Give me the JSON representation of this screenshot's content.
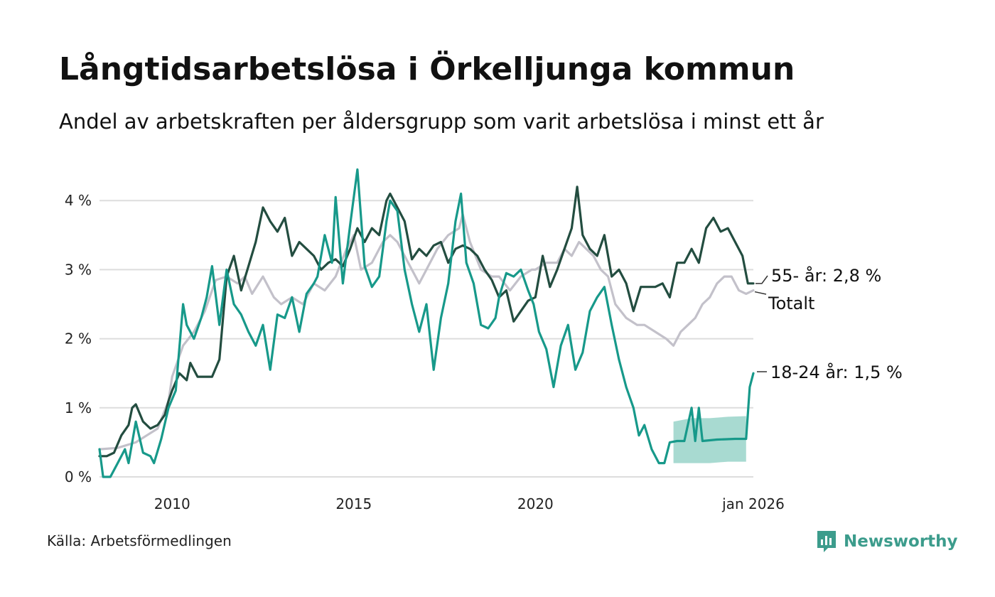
{
  "header": {
    "title": "Långtidsarbetslösa i Örkelljunga kommun",
    "subtitle": "Andel av arbetskraften per åldersgrupp som varit arbetslösa i minst ett år"
  },
  "footer": {
    "source": "Källa: Arbetsförmedlingen",
    "brand": "Newsworthy"
  },
  "colors": {
    "total": "#c3c1ca",
    "age55": "#234d40",
    "age18_24": "#17998a",
    "band": "#9fd6cc",
    "grid": "#dddddd"
  },
  "chart_data": {
    "type": "line",
    "title": "Långtidsarbetslösa i Örkelljunga kommun",
    "subtitle": "Andel av arbetskraften per åldersgrupp som varit arbetslösa i minst ett år",
    "xlabel": "",
    "ylabel": "",
    "x_unit": "year (decimal)",
    "xlim": [
      2008.0,
      2026.0
    ],
    "ylim": [
      0,
      4.5
    ],
    "y_ticks": [
      {
        "value": 0,
        "label": "0 %"
      },
      {
        "value": 1,
        "label": "1 %"
      },
      {
        "value": 2,
        "label": "2 %"
      },
      {
        "value": 3,
        "label": "3 %"
      },
      {
        "value": 4,
        "label": "4 %"
      }
    ],
    "x_ticks": [
      {
        "value": 2010,
        "label": "2010"
      },
      {
        "value": 2015,
        "label": "2015"
      },
      {
        "value": 2020,
        "label": "2020"
      },
      {
        "value": 2026,
        "label": "jan 2026"
      }
    ],
    "grid": true,
    "series": [
      {
        "name": "Totalt",
        "label": "Totalt",
        "color": "#c3c1ca",
        "points": [
          [
            2008.0,
            0.4
          ],
          [
            2008.5,
            0.42
          ],
          [
            2009.0,
            0.5
          ],
          [
            2009.3,
            0.6
          ],
          [
            2009.6,
            0.7
          ],
          [
            2009.9,
            1.1
          ],
          [
            2010.0,
            1.45
          ],
          [
            2010.3,
            1.9
          ],
          [
            2010.6,
            2.1
          ],
          [
            2010.9,
            2.4
          ],
          [
            2011.2,
            2.85
          ],
          [
            2011.5,
            2.9
          ],
          [
            2011.8,
            2.8
          ],
          [
            2012.0,
            2.9
          ],
          [
            2012.2,
            2.65
          ],
          [
            2012.5,
            2.9
          ],
          [
            2012.8,
            2.6
          ],
          [
            2013.0,
            2.5
          ],
          [
            2013.3,
            2.6
          ],
          [
            2013.6,
            2.5
          ],
          [
            2013.9,
            2.8
          ],
          [
            2014.2,
            2.7
          ],
          [
            2014.5,
            2.9
          ],
          [
            2014.8,
            3.3
          ],
          [
            2015.0,
            3.5
          ],
          [
            2015.2,
            3.0
          ],
          [
            2015.5,
            3.1
          ],
          [
            2015.8,
            3.4
          ],
          [
            2016.0,
            3.5
          ],
          [
            2016.2,
            3.4
          ],
          [
            2016.5,
            3.1
          ],
          [
            2016.8,
            2.8
          ],
          [
            2017.0,
            3.0
          ],
          [
            2017.3,
            3.3
          ],
          [
            2017.6,
            3.5
          ],
          [
            2017.9,
            3.6
          ],
          [
            2018.0,
            3.8
          ],
          [
            2018.2,
            3.4
          ],
          [
            2018.5,
            3.0
          ],
          [
            2018.8,
            2.9
          ],
          [
            2019.0,
            2.9
          ],
          [
            2019.3,
            2.7
          ],
          [
            2019.6,
            2.9
          ],
          [
            2019.9,
            3.0
          ],
          [
            2020.0,
            3.0
          ],
          [
            2020.3,
            3.1
          ],
          [
            2020.6,
            3.1
          ],
          [
            2020.8,
            3.3
          ],
          [
            2021.0,
            3.2
          ],
          [
            2021.2,
            3.4
          ],
          [
            2021.4,
            3.3
          ],
          [
            2021.6,
            3.2
          ],
          [
            2021.8,
            3.0
          ],
          [
            2022.0,
            2.9
          ],
          [
            2022.2,
            2.5
          ],
          [
            2022.5,
            2.3
          ],
          [
            2022.8,
            2.2
          ],
          [
            2023.0,
            2.2
          ],
          [
            2023.3,
            2.1
          ],
          [
            2023.6,
            2.0
          ],
          [
            2023.8,
            1.9
          ],
          [
            2024.0,
            2.1
          ],
          [
            2024.2,
            2.2
          ],
          [
            2024.4,
            2.3
          ],
          [
            2024.6,
            2.5
          ],
          [
            2024.8,
            2.6
          ],
          [
            2025.0,
            2.8
          ],
          [
            2025.2,
            2.9
          ],
          [
            2025.4,
            2.9
          ],
          [
            2025.6,
            2.7
          ],
          [
            2025.8,
            2.65
          ],
          [
            2026.0,
            2.7
          ]
        ]
      },
      {
        "name": "55- år",
        "label": "55- år: 2,8 %",
        "color": "#234d40",
        "points": [
          [
            2008.0,
            0.3
          ],
          [
            2008.2,
            0.3
          ],
          [
            2008.4,
            0.35
          ],
          [
            2008.6,
            0.6
          ],
          [
            2008.8,
            0.75
          ],
          [
            2008.9,
            1.0
          ],
          [
            2009.0,
            1.05
          ],
          [
            2009.2,
            0.8
          ],
          [
            2009.4,
            0.7
          ],
          [
            2009.6,
            0.75
          ],
          [
            2009.8,
            0.9
          ],
          [
            2009.9,
            1.1
          ],
          [
            2010.0,
            1.25
          ],
          [
            2010.2,
            1.5
          ],
          [
            2010.4,
            1.4
          ],
          [
            2010.5,
            1.65
          ],
          [
            2010.7,
            1.45
          ],
          [
            2010.9,
            1.45
          ],
          [
            2011.1,
            1.45
          ],
          [
            2011.3,
            1.7
          ],
          [
            2011.5,
            2.9
          ],
          [
            2011.7,
            3.2
          ],
          [
            2011.9,
            2.7
          ],
          [
            2012.1,
            3.05
          ],
          [
            2012.3,
            3.4
          ],
          [
            2012.5,
            3.9
          ],
          [
            2012.7,
            3.7
          ],
          [
            2012.9,
            3.55
          ],
          [
            2013.1,
            3.75
          ],
          [
            2013.3,
            3.2
          ],
          [
            2013.5,
            3.4
          ],
          [
            2013.7,
            3.3
          ],
          [
            2013.9,
            3.2
          ],
          [
            2014.1,
            3.0
          ],
          [
            2014.3,
            3.1
          ],
          [
            2014.5,
            3.15
          ],
          [
            2014.7,
            3.05
          ],
          [
            2014.9,
            3.3
          ],
          [
            2015.1,
            3.6
          ],
          [
            2015.3,
            3.4
          ],
          [
            2015.5,
            3.6
          ],
          [
            2015.7,
            3.5
          ],
          [
            2015.9,
            4.0
          ],
          [
            2016.0,
            4.1
          ],
          [
            2016.2,
            3.9
          ],
          [
            2016.4,
            3.7
          ],
          [
            2016.6,
            3.15
          ],
          [
            2016.8,
            3.3
          ],
          [
            2017.0,
            3.2
          ],
          [
            2017.2,
            3.35
          ],
          [
            2017.4,
            3.4
          ],
          [
            2017.6,
            3.1
          ],
          [
            2017.8,
            3.3
          ],
          [
            2018.0,
            3.35
          ],
          [
            2018.2,
            3.3
          ],
          [
            2018.4,
            3.2
          ],
          [
            2018.6,
            3.0
          ],
          [
            2018.8,
            2.85
          ],
          [
            2019.0,
            2.6
          ],
          [
            2019.2,
            2.7
          ],
          [
            2019.4,
            2.25
          ],
          [
            2019.6,
            2.4
          ],
          [
            2019.8,
            2.55
          ],
          [
            2020.0,
            2.6
          ],
          [
            2020.2,
            3.2
          ],
          [
            2020.4,
            2.75
          ],
          [
            2020.6,
            3.0
          ],
          [
            2020.8,
            3.3
          ],
          [
            2021.0,
            3.6
          ],
          [
            2021.15,
            4.2
          ],
          [
            2021.3,
            3.5
          ],
          [
            2021.5,
            3.3
          ],
          [
            2021.7,
            3.2
          ],
          [
            2021.9,
            3.5
          ],
          [
            2022.1,
            2.9
          ],
          [
            2022.3,
            3.0
          ],
          [
            2022.5,
            2.8
          ],
          [
            2022.7,
            2.4
          ],
          [
            2022.9,
            2.75
          ],
          [
            2023.1,
            2.75
          ],
          [
            2023.3,
            2.75
          ],
          [
            2023.5,
            2.8
          ],
          [
            2023.7,
            2.6
          ],
          [
            2023.9,
            3.1
          ],
          [
            2024.1,
            3.1
          ],
          [
            2024.3,
            3.3
          ],
          [
            2024.5,
            3.1
          ],
          [
            2024.7,
            3.6
          ],
          [
            2024.9,
            3.75
          ],
          [
            2025.1,
            3.55
          ],
          [
            2025.3,
            3.6
          ],
          [
            2025.5,
            3.4
          ],
          [
            2025.7,
            3.2
          ],
          [
            2025.85,
            2.8
          ],
          [
            2026.0,
            2.8
          ]
        ]
      },
      {
        "name": "18-24 år",
        "label": "18-24 år: 1,5 %",
        "color": "#17998a",
        "points": [
          [
            2008.0,
            0.4
          ],
          [
            2008.1,
            0.0
          ],
          [
            2008.3,
            0.0
          ],
          [
            2008.5,
            0.2
          ],
          [
            2008.7,
            0.4
          ],
          [
            2008.8,
            0.2
          ],
          [
            2009.0,
            0.8
          ],
          [
            2009.2,
            0.35
          ],
          [
            2009.4,
            0.3
          ],
          [
            2009.5,
            0.2
          ],
          [
            2009.7,
            0.55
          ],
          [
            2009.9,
            1.0
          ],
          [
            2010.1,
            1.25
          ],
          [
            2010.3,
            2.5
          ],
          [
            2010.4,
            2.2
          ],
          [
            2010.6,
            2.0
          ],
          [
            2010.8,
            2.3
          ],
          [
            2010.95,
            2.6
          ],
          [
            2011.1,
            3.05
          ],
          [
            2011.3,
            2.2
          ],
          [
            2011.5,
            3.0
          ],
          [
            2011.7,
            2.5
          ],
          [
            2011.9,
            2.35
          ],
          [
            2012.1,
            2.1
          ],
          [
            2012.3,
            1.9
          ],
          [
            2012.5,
            2.2
          ],
          [
            2012.7,
            1.55
          ],
          [
            2012.9,
            2.35
          ],
          [
            2013.1,
            2.3
          ],
          [
            2013.3,
            2.6
          ],
          [
            2013.5,
            2.1
          ],
          [
            2013.7,
            2.65
          ],
          [
            2013.9,
            2.8
          ],
          [
            2014.0,
            2.9
          ],
          [
            2014.2,
            3.5
          ],
          [
            2014.4,
            3.1
          ],
          [
            2014.5,
            4.05
          ],
          [
            2014.7,
            2.8
          ],
          [
            2014.9,
            3.65
          ],
          [
            2015.0,
            4.05
          ],
          [
            2015.1,
            4.45
          ],
          [
            2015.3,
            3.05
          ],
          [
            2015.5,
            2.75
          ],
          [
            2015.7,
            2.9
          ],
          [
            2015.9,
            3.7
          ],
          [
            2016.0,
            4.0
          ],
          [
            2016.2,
            3.85
          ],
          [
            2016.4,
            3.0
          ],
          [
            2016.6,
            2.5
          ],
          [
            2016.8,
            2.1
          ],
          [
            2017.0,
            2.5
          ],
          [
            2017.2,
            1.55
          ],
          [
            2017.4,
            2.3
          ],
          [
            2017.6,
            2.8
          ],
          [
            2017.8,
            3.7
          ],
          [
            2017.95,
            4.1
          ],
          [
            2018.1,
            3.1
          ],
          [
            2018.3,
            2.8
          ],
          [
            2018.5,
            2.2
          ],
          [
            2018.7,
            2.15
          ],
          [
            2018.9,
            2.3
          ],
          [
            2019.0,
            2.6
          ],
          [
            2019.2,
            2.95
          ],
          [
            2019.4,
            2.9
          ],
          [
            2019.6,
            3.0
          ],
          [
            2019.8,
            2.7
          ],
          [
            2019.95,
            2.5
          ],
          [
            2020.1,
            2.1
          ],
          [
            2020.3,
            1.85
          ],
          [
            2020.5,
            1.3
          ],
          [
            2020.7,
            1.9
          ],
          [
            2020.9,
            2.2
          ],
          [
            2021.1,
            1.55
          ],
          [
            2021.3,
            1.8
          ],
          [
            2021.5,
            2.4
          ],
          [
            2021.7,
            2.6
          ],
          [
            2021.9,
            2.75
          ],
          [
            2022.1,
            2.2
          ],
          [
            2022.3,
            1.7
          ],
          [
            2022.5,
            1.3
          ],
          [
            2022.7,
            1.0
          ],
          [
            2022.85,
            0.6
          ],
          [
            2023.0,
            0.75
          ],
          [
            2023.2,
            0.4
          ],
          [
            2023.4,
            0.2
          ],
          [
            2023.55,
            0.2
          ],
          [
            2023.7,
            0.5
          ],
          [
            2023.9,
            0.52
          ],
          [
            2024.1,
            0.52
          ],
          [
            2024.3,
            1.0
          ],
          [
            2024.4,
            0.52
          ],
          [
            2024.5,
            1.0
          ],
          [
            2024.6,
            0.52
          ],
          [
            2025.0,
            0.54
          ],
          [
            2025.5,
            0.55
          ],
          [
            2025.8,
            0.55
          ],
          [
            2025.9,
            1.3
          ],
          [
            2026.0,
            1.5
          ]
        ]
      }
    ],
    "uncertainty_band": {
      "series": "18-24 år",
      "points": [
        [
          2023.8,
          0.8,
          0.2
        ],
        [
          2024.3,
          0.85,
          0.2
        ],
        [
          2024.8,
          0.85,
          0.2
        ],
        [
          2025.3,
          0.87,
          0.22
        ],
        [
          2025.8,
          0.88,
          0.22
        ]
      ]
    }
  }
}
